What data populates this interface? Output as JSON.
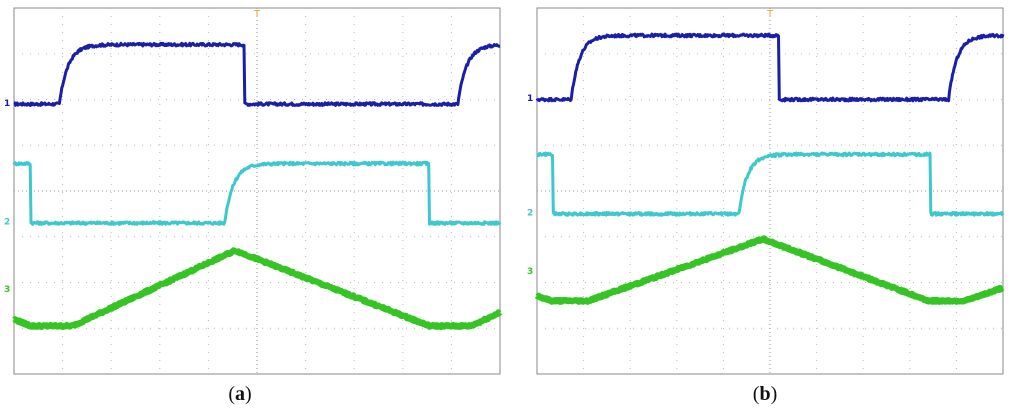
{
  "colors": {
    "ch1": "#1a1fa8",
    "ch2": "#3cc8cc",
    "ch3": "#35c424",
    "grid_dot": "#b9b9b9",
    "frame": "#8a8a8a",
    "trigger": "#f0a030"
  },
  "chart_data": [
    {
      "type": "line",
      "caption_open": "(",
      "caption_letter": "a",
      "caption_close": ")",
      "x_divisions": 10,
      "y_divisions": 8,
      "grid": true,
      "markers": [
        "1",
        "2",
        "3"
      ],
      "trigger_marker": "T",
      "series": [
        {
          "channel": 1,
          "shape": "square",
          "rise_div": 0.95,
          "fall_div": 4.75,
          "period_div": 8.2,
          "high_div": 7.2,
          "low_div": 5.9
        },
        {
          "channel": 2,
          "shape": "square_inverted",
          "fall_div": 0.35,
          "rise_div": 4.35,
          "period_div": 8.2,
          "high_div": 4.6,
          "low_div": 3.3
        },
        {
          "channel": 3,
          "shape": "triangle",
          "valley_start_div": 0.35,
          "valley_end_div": 1.2,
          "peak_div": 4.55,
          "period_div": 8.2,
          "high_div": 2.7,
          "low_div": 1.05
        }
      ]
    },
    {
      "type": "line",
      "caption_open": "(",
      "caption_letter": "b",
      "caption_close": ")",
      "x_divisions": 10,
      "y_divisions": 8,
      "grid": true,
      "markers": [
        "1",
        "2",
        "3"
      ],
      "trigger_marker": "T",
      "series": [
        {
          "channel": 1,
          "shape": "square",
          "rise_div": 0.75,
          "fall_div": 5.2,
          "period_div": 8.1,
          "high_div": 7.4,
          "low_div": 6.0
        },
        {
          "channel": 2,
          "shape": "square_inverted",
          "fall_div": 0.35,
          "rise_div": 4.35,
          "period_div": 8.1,
          "high_div": 4.8,
          "low_div": 3.5
        },
        {
          "channel": 3,
          "shape": "triangle",
          "valley_start_div": 0.3,
          "valley_end_div": 1.1,
          "peak_div": 4.85,
          "period_div": 8.1,
          "high_div": 2.95,
          "low_div": 1.6
        }
      ]
    }
  ]
}
